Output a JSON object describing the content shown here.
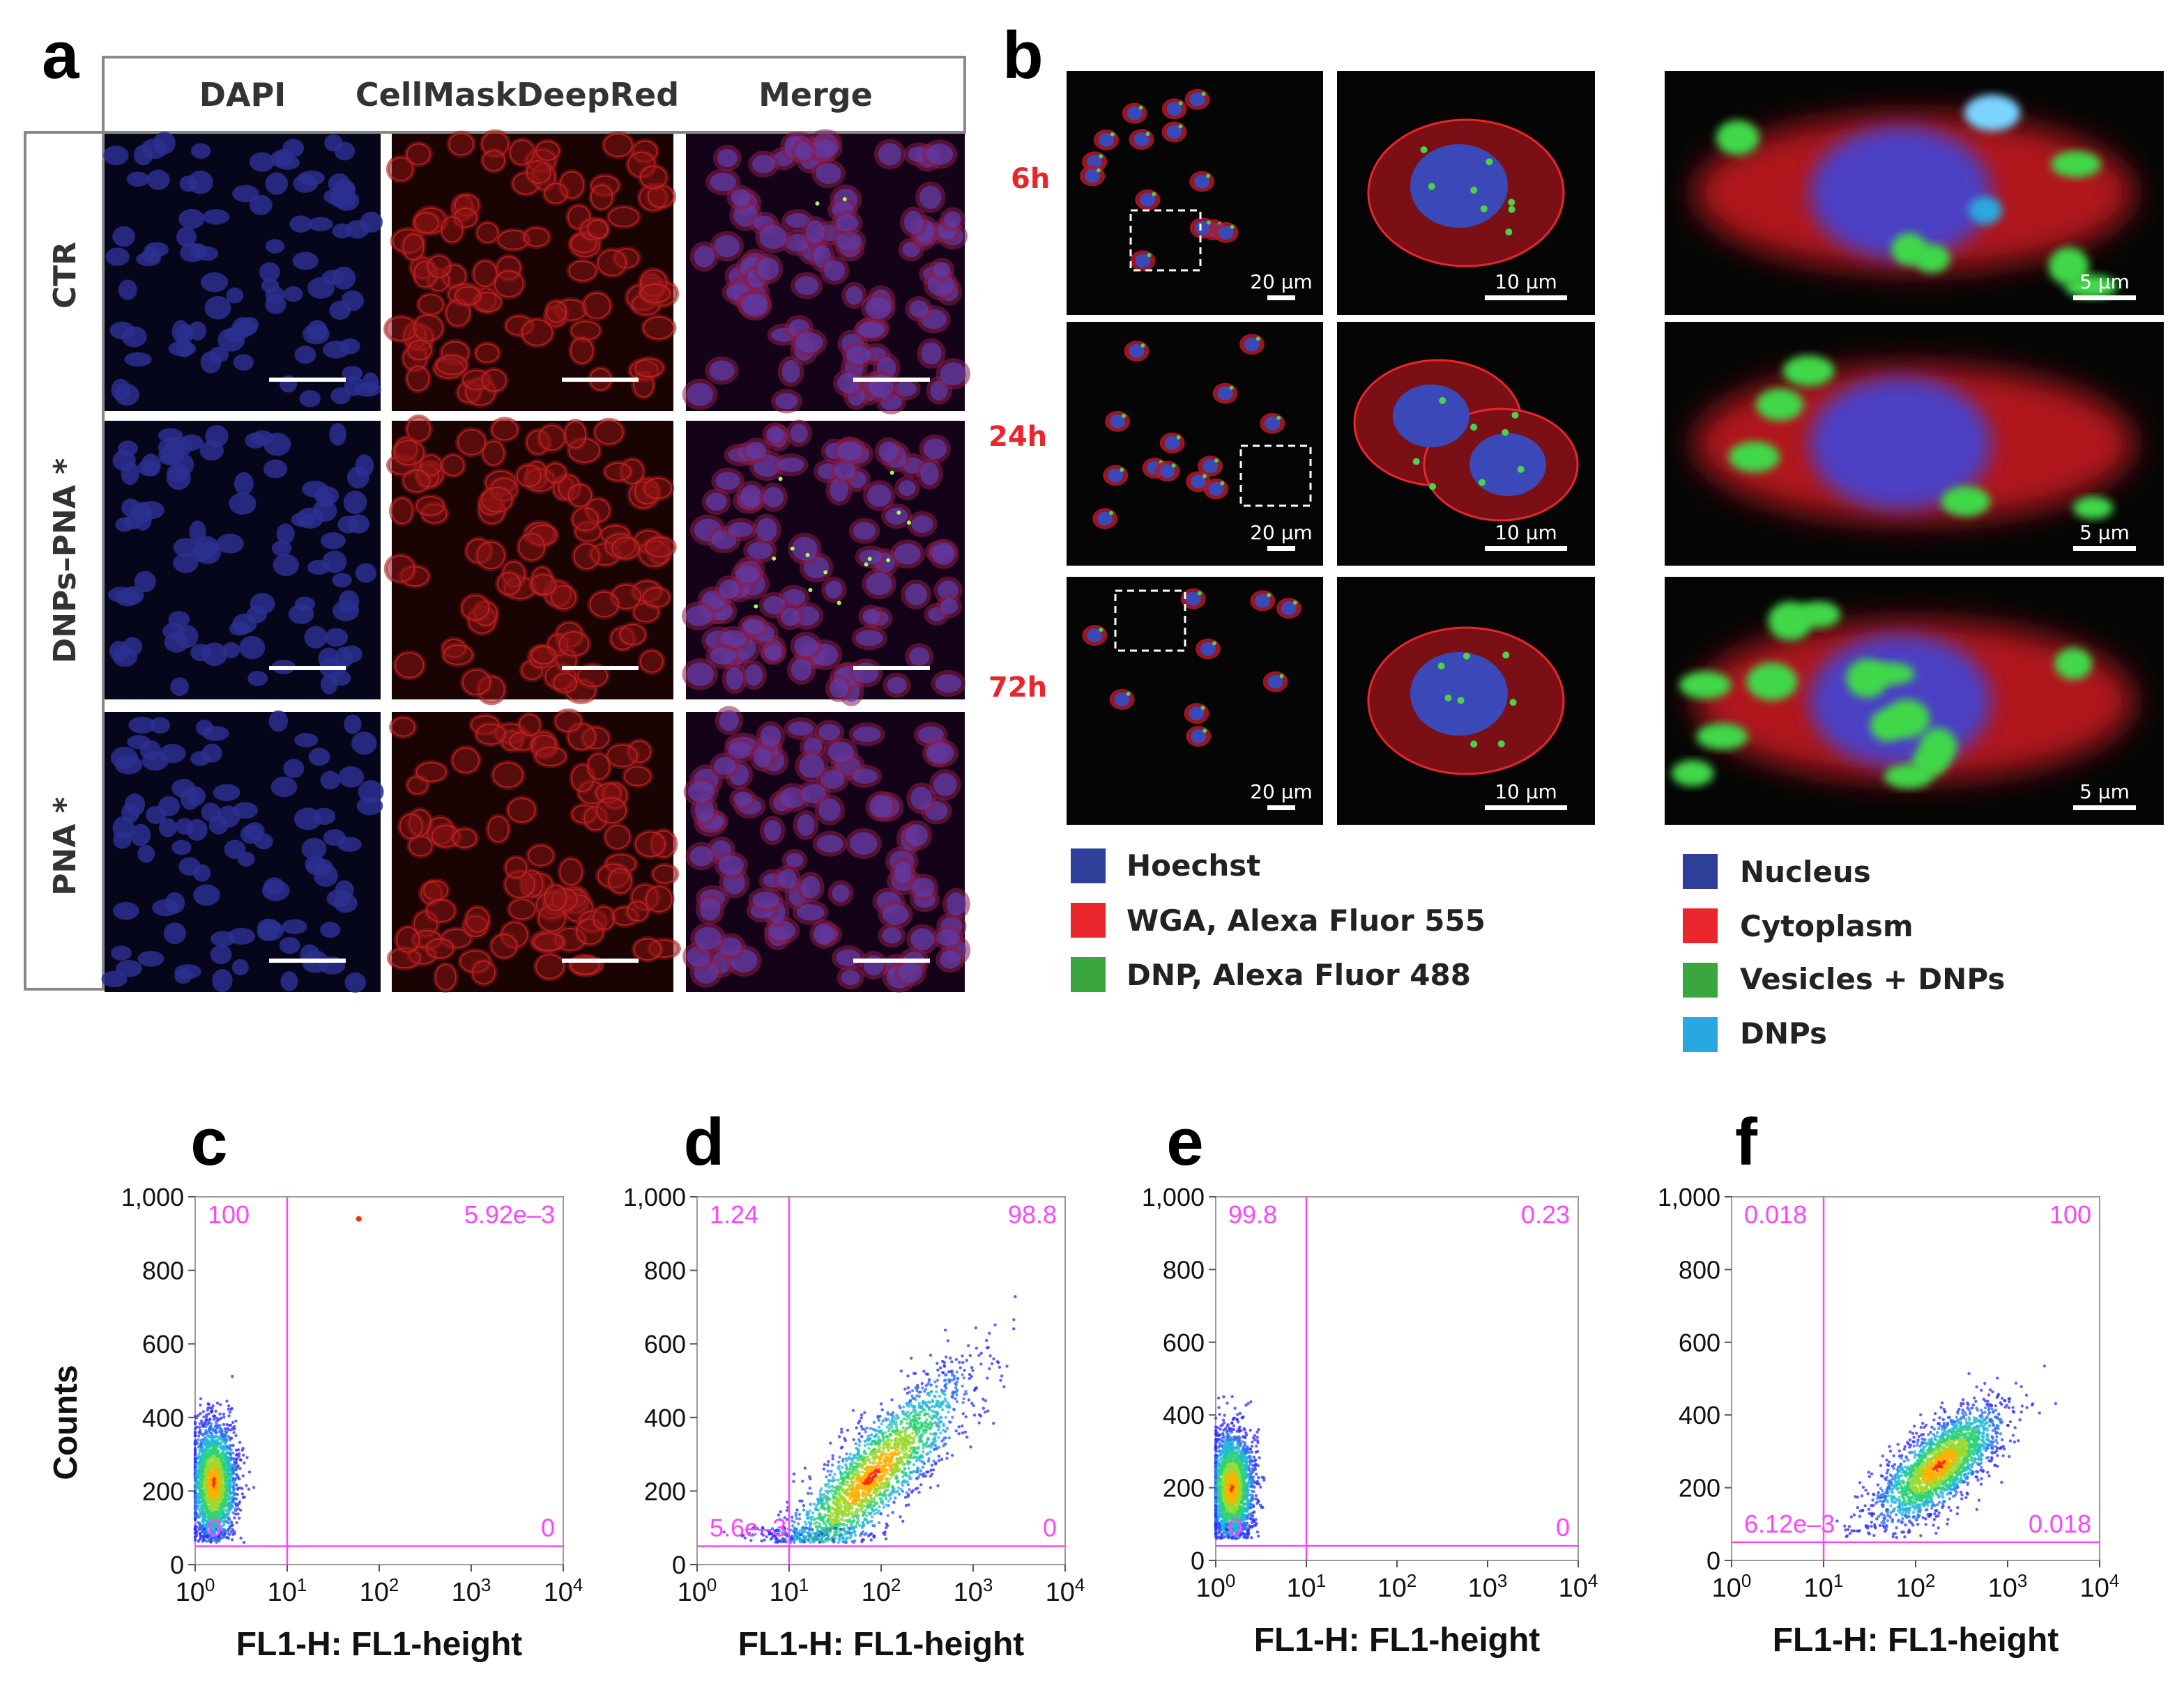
{
  "panel_a": {
    "label": "a",
    "columns": [
      "DAPI",
      "CellMaskDeepRed",
      "Merge"
    ],
    "rows": [
      "CTR",
      "DNPs–PNA *",
      "PNA *"
    ]
  },
  "panel_b": {
    "label": "b",
    "times": [
      "6h",
      "24h",
      "72h"
    ],
    "scale_bars": {
      "overview": "20 µm",
      "detail": "10 µm",
      "zoom": "5 µm"
    },
    "legend_left": [
      {
        "label": "Hoechst",
        "color": "#2e3f9a"
      },
      {
        "label": "WGA, Alexa Fluor 555",
        "color": "#e8262b"
      },
      {
        "label": "DNP, Alexa Fluor 488",
        "color": "#3aa63d"
      }
    ],
    "legend_right": [
      {
        "label": "Nucleus",
        "color": "#2e3f9a"
      },
      {
        "label": "Cytoplasm",
        "color": "#e8262b"
      },
      {
        "label": "Vesicles + DNPs",
        "color": "#3aa63d"
      },
      {
        "label": "DNPs",
        "color": "#29a8df"
      }
    ],
    "time_color": "#e8262b"
  },
  "chart_data": [
    {
      "type": "scatter",
      "panel": "c",
      "xlabel": "FL1-H: FL1-height",
      "ylabel": "Counts",
      "xscale": "log",
      "xlim": [
        1,
        10000
      ],
      "ylim": [
        0,
        1000
      ],
      "yticks": [
        "0",
        "200",
        "400",
        "600",
        "800",
        "1,000"
      ],
      "gate": {
        "x": 10,
        "y": 50
      },
      "quadrants": {
        "top_left": "100",
        "top_right": "5.92e–3",
        "bottom_left": "0",
        "bottom_right": "0"
      },
      "cloud": {
        "x_center": 1.6,
        "y_center": 220,
        "x_spread": 0.12,
        "y_spread": 80,
        "slope": 0
      }
    },
    {
      "type": "scatter",
      "panel": "d",
      "xlabel": "FL1-H: FL1-height",
      "ylabel": "",
      "xscale": "log",
      "xlim": [
        1,
        10000
      ],
      "ylim": [
        0,
        1000
      ],
      "yticks": [
        "0",
        "200",
        "400",
        "600",
        "800",
        "1,000"
      ],
      "gate": {
        "x": 10,
        "y": 50
      },
      "quadrants": {
        "top_left": "1.24",
        "top_right": "98.8",
        "bottom_left": "5.6e–3",
        "bottom_right": "0"
      },
      "cloud": {
        "x_center": 80,
        "y_center": 240,
        "x_spread": 0.5,
        "y_spread": 70,
        "slope": 230
      }
    },
    {
      "type": "scatter",
      "panel": "e",
      "xlabel": "FL1-H: FL1-height",
      "ylabel": "",
      "xscale": "log",
      "xlim": [
        1,
        10000
      ],
      "ylim": [
        0,
        1000
      ],
      "yticks": [
        "0",
        "200",
        "400",
        "600",
        "800",
        "1,000"
      ],
      "gate": {
        "x": 10,
        "y": 40
      },
      "quadrants": {
        "top_left": "99.8",
        "top_right": "0.23",
        "bottom_left": "0",
        "bottom_right": "0"
      },
      "cloud": {
        "x_center": 1.5,
        "y_center": 200,
        "x_spread": 0.12,
        "y_spread": 75,
        "slope": 0
      }
    },
    {
      "type": "scatter",
      "panel": "f",
      "xlabel": "FL1-H: FL1-height",
      "ylabel": "",
      "xscale": "log",
      "xlim": [
        1,
        10000
      ],
      "ylim": [
        0,
        1000
      ],
      "yticks": [
        "0",
        "200",
        "400",
        "600",
        "800",
        "1,000"
      ],
      "gate": {
        "x": 10,
        "y": 50
      },
      "quadrants": {
        "top_left": "0.018",
        "top_right": "100",
        "bottom_left": "6.12e–3",
        "bottom_right": "0.018"
      },
      "cloud": {
        "x_center": 180,
        "y_center": 260,
        "x_spread": 0.33,
        "y_spread": 55,
        "slope": 170
      }
    }
  ],
  "colors": {
    "gate": "#ff44ff",
    "quadrant_text": "#ff44ff"
  }
}
